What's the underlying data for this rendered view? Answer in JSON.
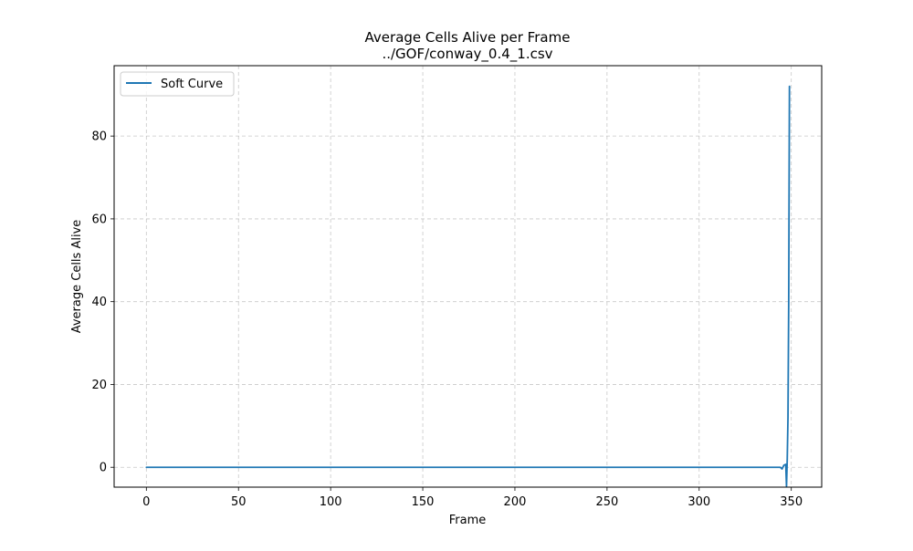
{
  "chart_data": {
    "type": "line",
    "title": "Average Cells Alive per Frame",
    "subtitle": "../GOF/conway_0.4_1.csv",
    "xlabel": "Frame",
    "ylabel": "Average Cells Alive",
    "xlim": [
      -17.5,
      366.5
    ],
    "ylim": [
      -4.8,
      97.0
    ],
    "xticks": [
      0,
      50,
      100,
      150,
      200,
      250,
      300,
      350
    ],
    "yticks": [
      0,
      20,
      40,
      60,
      80
    ],
    "xtick_labels": [
      "0",
      "50",
      "100",
      "150",
      "200",
      "250",
      "300",
      "350"
    ],
    "ytick_labels": [
      "0",
      "20",
      "40",
      "60",
      "80"
    ],
    "grid": true,
    "legend": {
      "placement": "top-left",
      "entries": [
        "Soft Curve"
      ]
    },
    "series": [
      {
        "name": "Soft Curve",
        "color": "#1f77b4",
        "x": [
          0,
          50,
          100,
          150,
          200,
          250,
          300,
          340,
          344,
          345,
          346,
          347,
          347.4,
          347.8,
          348.2,
          348.6,
          349
        ],
        "y": [
          0,
          0,
          0,
          0,
          0,
          0,
          0,
          0,
          0,
          -0.4,
          0.5,
          0.7,
          -4.6,
          2.0,
          12.0,
          40.0,
          92.0
        ]
      }
    ]
  }
}
